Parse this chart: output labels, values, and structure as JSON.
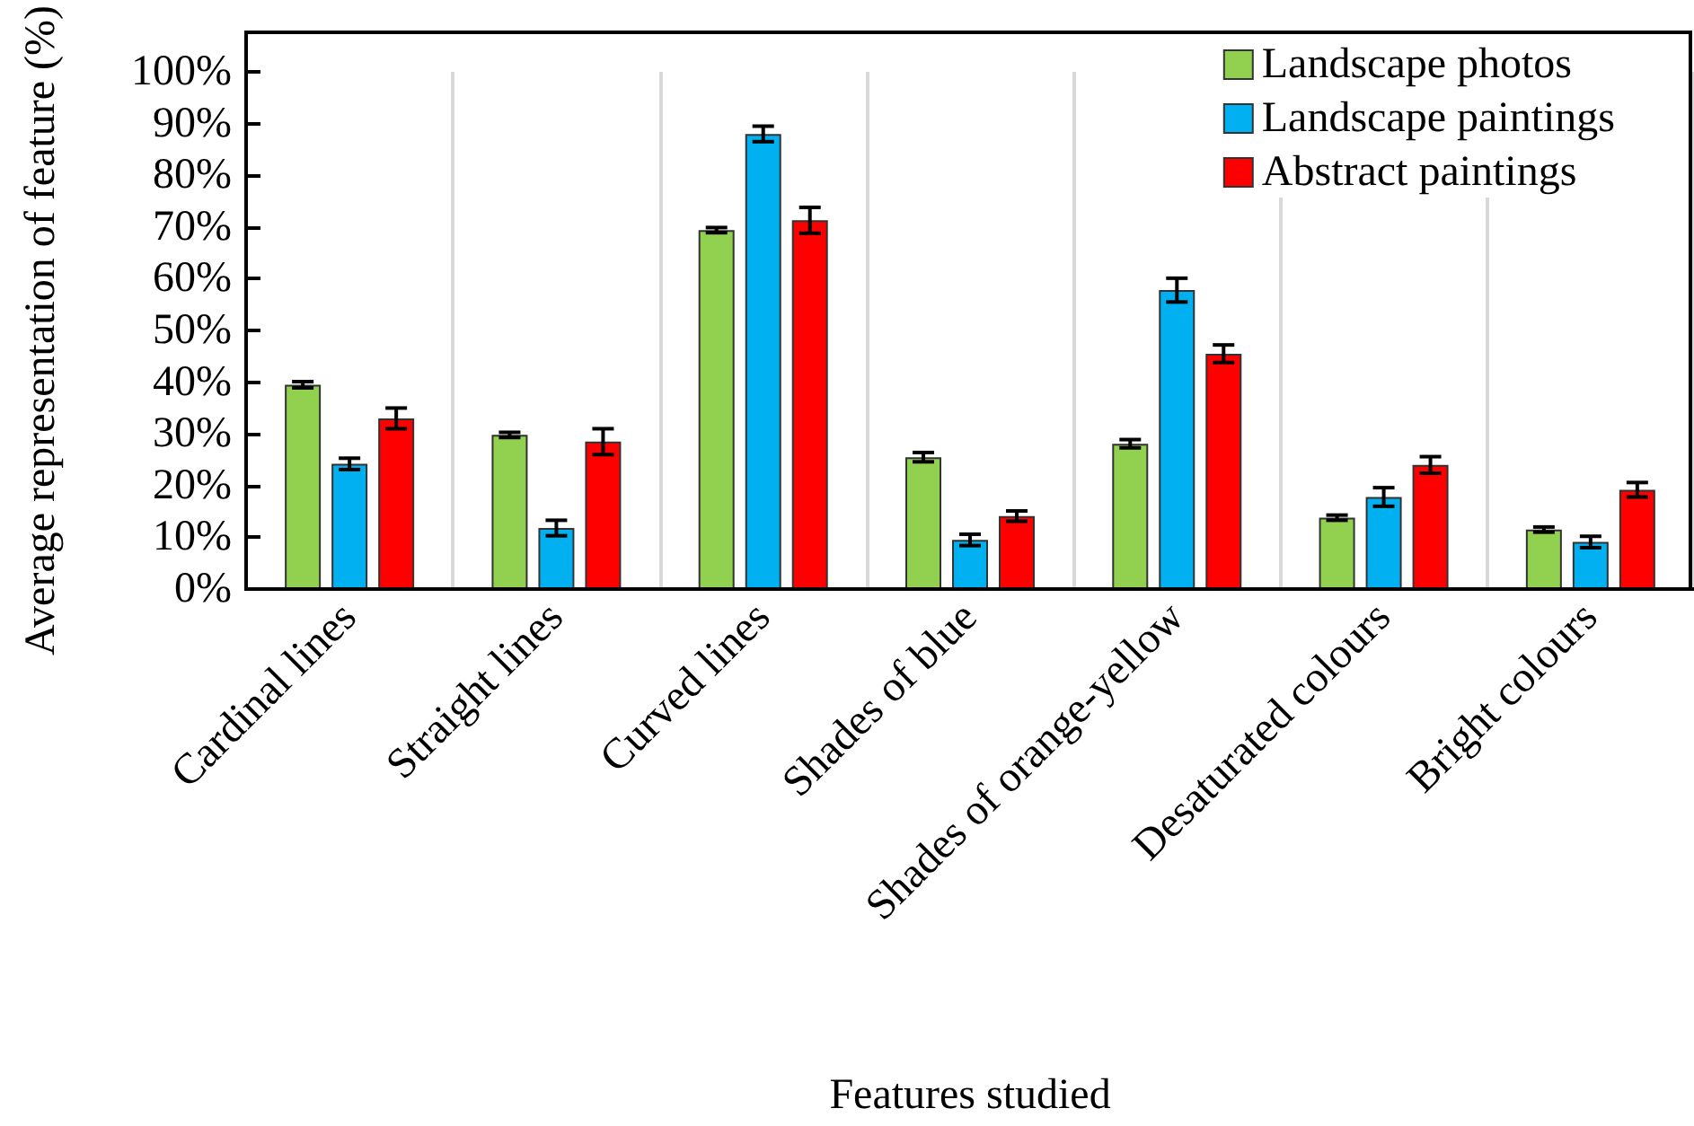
{
  "chart_data": {
    "type": "bar",
    "xlabel": "Features studied",
    "ylabel": "Average representation of feature (%)",
    "categories": [
      "Cardinal lines",
      "Straight lines",
      "Curved lines",
      "Shades of blue",
      "Shades of orange-yellow",
      "Desaturated colours",
      "Bright colours"
    ],
    "series": [
      {
        "name": "Landscape photos",
        "color": "#92d050",
        "values": [
          39.5,
          29.8,
          69.4,
          25.5,
          28.1,
          13.8,
          11.5
        ],
        "errors": [
          0.6,
          0.5,
          0.5,
          0.9,
          0.8,
          0.5,
          0.5
        ]
      },
      {
        "name": "Landscape paintings",
        "color": "#00b0f0",
        "values": [
          24.2,
          11.8,
          88.0,
          9.5,
          57.8,
          17.8,
          9.1
        ],
        "errors": [
          1.1,
          1.5,
          1.5,
          1.1,
          2.3,
          1.8,
          1.1
        ]
      },
      {
        "name": "Abstract paintings",
        "color": "#ff0000",
        "values": [
          33.0,
          28.5,
          71.3,
          14.1,
          45.5,
          24.0,
          19.2
        ],
        "errors": [
          2.0,
          2.5,
          2.5,
          1.0,
          1.7,
          1.6,
          1.4
        ]
      }
    ],
    "ylim": [
      0,
      100
    ],
    "yticks": [
      {
        "value": 0,
        "label": "0%"
      },
      {
        "value": 10,
        "label": "10%"
      },
      {
        "value": 20,
        "label": "20%"
      },
      {
        "value": 30,
        "label": "30%"
      },
      {
        "value": 40,
        "label": "40%"
      },
      {
        "value": 50,
        "label": "50%"
      },
      {
        "value": 60,
        "label": "60%"
      },
      {
        "value": 70,
        "label": "70%"
      },
      {
        "value": 80,
        "label": "80%"
      },
      {
        "value": 90,
        "label": "90%"
      },
      {
        "value": 100,
        "label": "100%"
      }
    ],
    "grid": "x",
    "legend": "top right"
  }
}
